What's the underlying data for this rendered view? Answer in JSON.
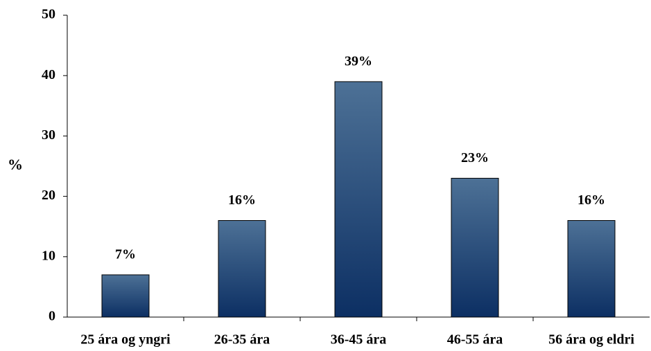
{
  "chart_data": {
    "type": "bar",
    "title": "",
    "xlabel": "",
    "ylabel": "%",
    "categories": [
      "25 ára og yngri",
      "26-35 ára",
      "36-45 ára",
      "46-55 ára",
      "56 ára og eldri"
    ],
    "values": [
      7,
      16,
      39,
      23,
      16
    ],
    "data_labels": [
      "7%",
      "16%",
      "39%",
      "23%",
      "16%"
    ],
    "ylim": [
      0,
      50
    ],
    "yticks": [
      0,
      10,
      20,
      30,
      40,
      50
    ],
    "grid": false,
    "legend": "none",
    "colors": {
      "bar_top": "#4d7196",
      "bar_bottom": "#0c2f63",
      "bar_stroke": "#000000",
      "axis": "#000000",
      "text": "#000000"
    }
  }
}
